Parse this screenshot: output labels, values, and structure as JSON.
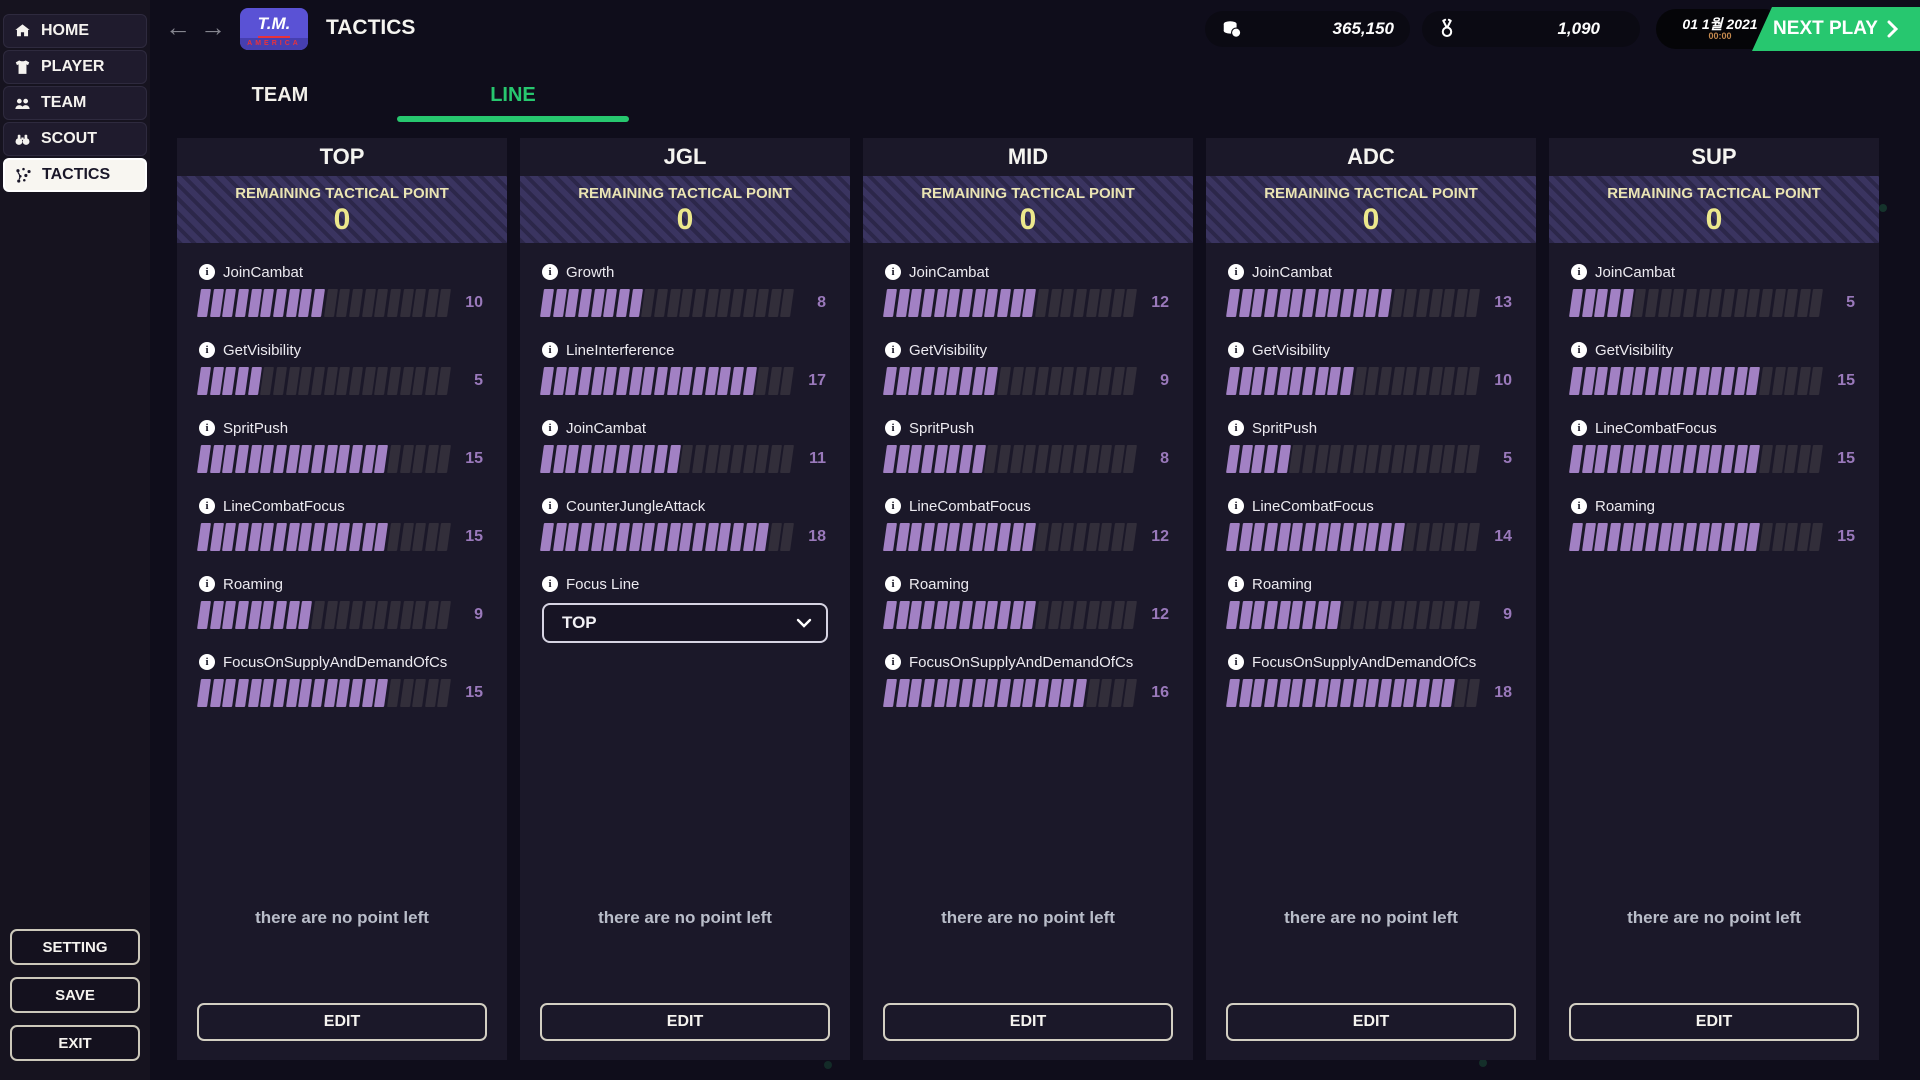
{
  "app": {
    "logo_top": "T.M.",
    "logo_bottom": "AMERICA"
  },
  "topbar": {
    "title": "TACTICS",
    "money": "365,150",
    "medals": "1,090",
    "date": "01 1월 2021",
    "time": "00:00",
    "next_play": "NEXT PLAY"
  },
  "sidebar": {
    "items": [
      {
        "label": "HOME",
        "icon": "home-icon",
        "active": false
      },
      {
        "label": "PLAYER",
        "icon": "player-icon",
        "active": false
      },
      {
        "label": "TEAM",
        "icon": "team-icon",
        "active": false
      },
      {
        "label": "SCOUT",
        "icon": "scout-icon",
        "active": false
      },
      {
        "label": "TACTICS",
        "icon": "tactics-icon",
        "active": true
      }
    ],
    "footer": [
      {
        "label": "SETTING"
      },
      {
        "label": "SAVE"
      },
      {
        "label": "EXIT"
      }
    ]
  },
  "tabs": [
    {
      "label": "TEAM",
      "active": false
    },
    {
      "label": "LINE",
      "active": true
    }
  ],
  "column_common": {
    "remaining_label": "REMAINING TACTICAL POINT",
    "no_points_text": "there are no point left",
    "edit_label": "EDIT",
    "bar_segments": 20
  },
  "columns": [
    {
      "lane": "TOP",
      "remaining": "0",
      "stats": [
        {
          "label": "JoinCambat",
          "value": 10
        },
        {
          "label": "GetVisibility",
          "value": 5
        },
        {
          "label": "SpritPush",
          "value": 15
        },
        {
          "label": "LineCombatFocus",
          "value": 15
        },
        {
          "label": "Roaming",
          "value": 9
        },
        {
          "label": "FocusOnSupplyAndDemandOfCs",
          "value": 15
        }
      ]
    },
    {
      "lane": "JGL",
      "remaining": "0",
      "stats": [
        {
          "label": "Growth",
          "value": 8
        },
        {
          "label": "LineInterference",
          "value": 17
        },
        {
          "label": "JoinCambat",
          "value": 11
        },
        {
          "label": "CounterJungleAttack",
          "value": 18
        }
      ],
      "select": {
        "label": "Focus Line",
        "value": "TOP"
      }
    },
    {
      "lane": "MID",
      "remaining": "0",
      "stats": [
        {
          "label": "JoinCambat",
          "value": 12
        },
        {
          "label": "GetVisibility",
          "value": 9
        },
        {
          "label": "SpritPush",
          "value": 8
        },
        {
          "label": "LineCombatFocus",
          "value": 12
        },
        {
          "label": "Roaming",
          "value": 12
        },
        {
          "label": "FocusOnSupplyAndDemandOfCs",
          "value": 16
        }
      ]
    },
    {
      "lane": "ADC",
      "remaining": "0",
      "stats": [
        {
          "label": "JoinCambat",
          "value": 13
        },
        {
          "label": "GetVisibility",
          "value": 10
        },
        {
          "label": "SpritPush",
          "value": 5
        },
        {
          "label": "LineCombatFocus",
          "value": 14
        },
        {
          "label": "Roaming",
          "value": 9
        },
        {
          "label": "FocusOnSupplyAndDemandOfCs",
          "value": 18
        }
      ]
    },
    {
      "lane": "SUP",
      "remaining": "0",
      "stats": [
        {
          "label": "JoinCambat",
          "value": 5
        },
        {
          "label": "GetVisibility",
          "value": 15
        },
        {
          "label": "LineCombatFocus",
          "value": 15
        },
        {
          "label": "Roaming",
          "value": 15
        }
      ]
    }
  ],
  "colors": {
    "accent_green": "#27c76f",
    "bar_filled": "#a281c4",
    "bar_empty": "#322e3a",
    "value_text": "#9a79bb",
    "band_bg": "#3a3460",
    "band_text": "#eae4b3",
    "logo_blue": "#5a52d5",
    "logo_red": "#e8323c"
  }
}
